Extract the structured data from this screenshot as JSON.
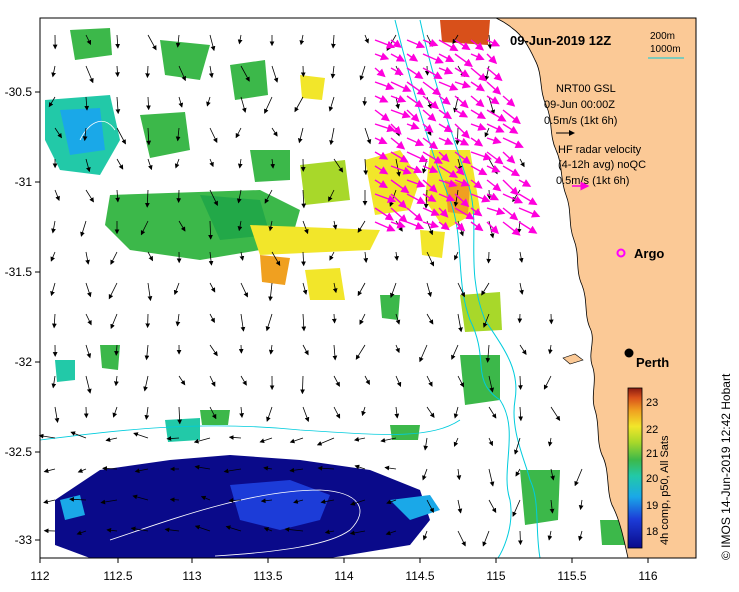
{
  "map": {
    "title": "09-Jun-2019 12Z",
    "x_ticks": [
      "112",
      "112.5",
      "113",
      "113.5",
      "114",
      "114.5",
      "115",
      "115.5",
      "116"
    ],
    "y_ticks": [
      "-30.5",
      "-31",
      "-31.5",
      "-32",
      "-32.5",
      "-33"
    ],
    "lon_range": [
      112,
      116.3
    ],
    "lat_range": [
      -30.1,
      -33.1
    ]
  },
  "bathymetry_legend": {
    "items": [
      {
        "label": "200m",
        "color": "#00ccdd"
      },
      {
        "label": "1000m",
        "color": "#00ccdd"
      }
    ]
  },
  "sst_legend": {
    "line1": "NRT00 GSL",
    "line2": "09-Jun 00:00Z",
    "line3": "0.5m/s (1kt 6h)"
  },
  "hf_legend": {
    "line1": "HF radar velocity",
    "line2": "(4-12h avg) noQC",
    "line3": "0.5m/s (1kt 6h)",
    "color": "#ff00dd"
  },
  "places": {
    "argo": {
      "label": "Argo",
      "color": "#ff00ff"
    },
    "perth": {
      "label": "Perth"
    }
  },
  "colorbar": {
    "ticks": [
      "23",
      "22",
      "21",
      "20",
      "19",
      "18"
    ],
    "label": "4h comp, p50, All Sats"
  },
  "credit": "© IMOS 14-Jun-2019 12:42 Hobart"
}
